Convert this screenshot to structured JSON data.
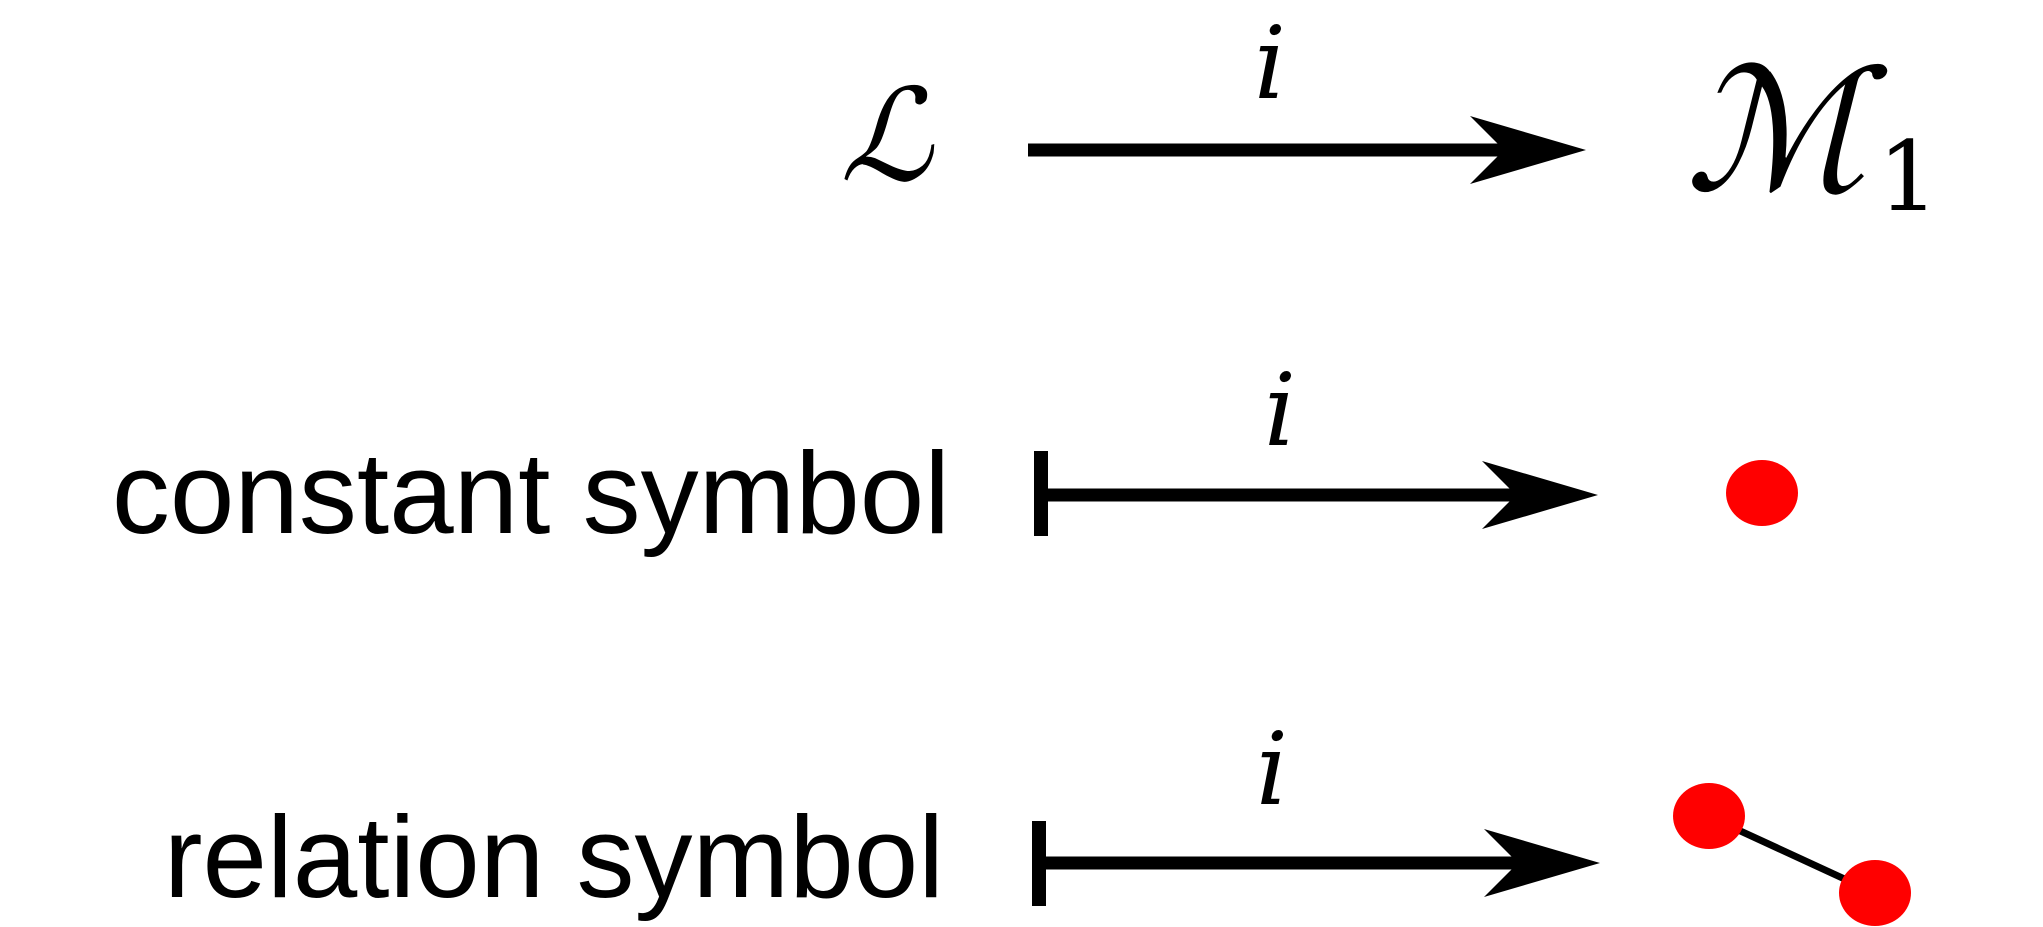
{
  "rows": [
    {
      "source": "ℒ",
      "map_label": "i",
      "target": "ℳ",
      "target_subscript": "1"
    },
    {
      "source": "constant symbol",
      "map_label": "i"
    },
    {
      "source": "relation symbol",
      "map_label": "i"
    }
  ],
  "colors": {
    "stroke": "#000000",
    "node": "#ff0000"
  }
}
